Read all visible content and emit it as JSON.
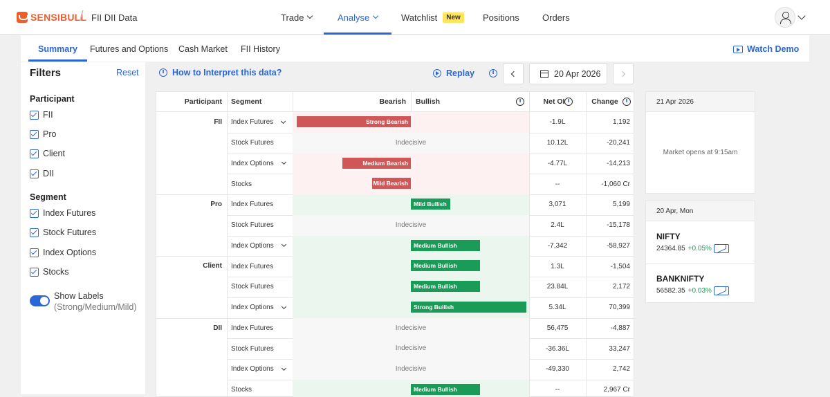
{
  "header": {
    "brand": "SENSIBULL",
    "page": "FII DII Data",
    "nav": [
      {
        "label": "Trade",
        "chev": true
      },
      {
        "label": "Analyse",
        "chev": true,
        "active": true
      },
      {
        "label": "Watchlist",
        "badge": "New"
      },
      {
        "label": "Positions"
      },
      {
        "label": "Orders"
      }
    ]
  },
  "subnav": {
    "tabs": [
      "Summary",
      "Futures and Options",
      "Cash Market",
      "FII History"
    ],
    "active": "Summary",
    "watch_demo": "Watch Demo"
  },
  "filters": {
    "title": "Filters",
    "reset": "Reset",
    "participant_title": "Participant",
    "participants": [
      "FII",
      "Pro",
      "Client",
      "DII"
    ],
    "segment_title": "Segment",
    "segments": [
      "Index Futures",
      "Stock Futures",
      "Index Options",
      "Stocks"
    ],
    "toggle_label": "Show Labels",
    "toggle_sub": "(Strong/Medium/Mild)",
    "toggle_on": true
  },
  "toolbar": {
    "interpret": "How to Interpret this data?",
    "replay": "Replay",
    "date": "20 Apr 2026"
  },
  "table": {
    "headers": [
      "Participant",
      "Segment",
      "Bearish",
      "Bullish",
      "Net OI",
      "Change"
    ],
    "rows": [
      {
        "participant": "FII",
        "segment": "Index Futures",
        "expand": true,
        "sentiment": "bear",
        "label": "Strong Bearish",
        "strength": 1.0,
        "net_oi": "-1.9L",
        "change": "1,192"
      },
      {
        "participant": "",
        "segment": "Stock Futures",
        "expand": false,
        "sentiment": "neutral",
        "label": "Indecisive",
        "strength": 0,
        "net_oi": "10.12L",
        "change": "-20,241"
      },
      {
        "participant": "",
        "segment": "Index Options",
        "expand": true,
        "sentiment": "bear",
        "label": "Medium Bearish",
        "strength": 0.6,
        "net_oi": "-4.77L",
        "change": "-14,213"
      },
      {
        "participant": "",
        "segment": "Stocks",
        "expand": false,
        "sentiment": "bear",
        "label": "Mild Bearish",
        "strength": 0.34,
        "net_oi": "--",
        "change": "-1,060 Cr"
      },
      {
        "participant": "Pro",
        "segment": "Index Futures",
        "expand": false,
        "sentiment": "bull",
        "label": "Mild Bullish",
        "strength": 0.34,
        "net_oi": "3,071",
        "change": "5,199"
      },
      {
        "participant": "",
        "segment": "Stock Futures",
        "expand": false,
        "sentiment": "neutral",
        "label": "Indecisive",
        "strength": 0,
        "net_oi": "2.4L",
        "change": "-15,178"
      },
      {
        "participant": "",
        "segment": "Index Options",
        "expand": true,
        "sentiment": "bull",
        "label": "Medium Bullish",
        "strength": 0.6,
        "net_oi": "-7,342",
        "change": "-58,927"
      },
      {
        "participant": "Client",
        "segment": "Index Futures",
        "expand": false,
        "sentiment": "bull",
        "label": "Medium Bullish",
        "strength": 0.6,
        "net_oi": "1.3L",
        "change": "-1,504"
      },
      {
        "participant": "",
        "segment": "Stock Futures",
        "expand": false,
        "sentiment": "bull",
        "label": "Medium Bullish",
        "strength": 0.6,
        "net_oi": "23.84L",
        "change": "2,172"
      },
      {
        "participant": "",
        "segment": "Index Options",
        "expand": true,
        "sentiment": "bull",
        "label": "Strong Bullish",
        "strength": 1.0,
        "net_oi": "5.34L",
        "change": "70,399"
      },
      {
        "participant": "DII",
        "segment": "Index Futures",
        "expand": false,
        "sentiment": "neutral",
        "label": "Indecisive",
        "strength": 0,
        "net_oi": "56,475",
        "change": "-4,887"
      },
      {
        "participant": "",
        "segment": "Stock Futures",
        "expand": false,
        "sentiment": "neutral",
        "label": "Indecisive",
        "strength": 0,
        "net_oi": "-36.36L",
        "change": "33,247"
      },
      {
        "participant": "",
        "segment": "Index Options",
        "expand": true,
        "sentiment": "neutral",
        "label": "Indecisive",
        "strength": 0,
        "net_oi": "-49,330",
        "change": "2,742"
      },
      {
        "participant": "",
        "segment": "Stocks",
        "expand": false,
        "sentiment": "bull",
        "label": "Medium Bullish",
        "strength": 0.6,
        "net_oi": "--",
        "change": "2,967 Cr"
      }
    ]
  },
  "side": {
    "next_date": "21 Apr 2026",
    "market_msg": "Market opens at 9:15am",
    "date2": "20 Apr, Mon",
    "indices": [
      {
        "name": "NIFTY",
        "value": "24364.85",
        "change": "+0.05%"
      },
      {
        "name": "BANKNIFTY",
        "value": "56582.35",
        "change": "+0.03%"
      }
    ]
  },
  "colors": {
    "accent": "#2a66d6",
    "bear": "#d05757",
    "bull": "#1a9b57",
    "bear_bg": "#fdf1f1",
    "bull_bg": "#eaf6ee",
    "neutral_bg": "#f7f7f7",
    "brand": "#ef5d2b"
  }
}
